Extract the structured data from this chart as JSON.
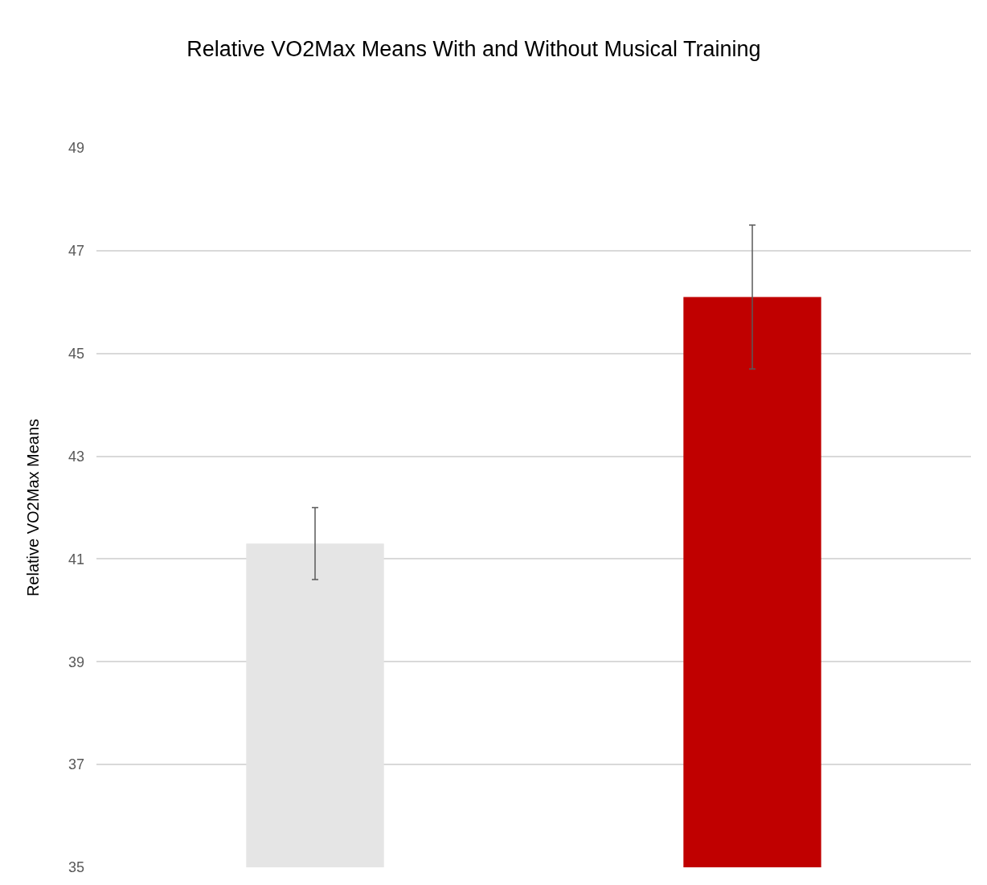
{
  "chart_data": {
    "type": "bar",
    "title": "Relative VO2Max Means With and Without Musical Training",
    "ylabel": "Relative VO2Max Means",
    "categories": [
      null,
      null
    ],
    "values": [
      41.3,
      46.1
    ],
    "colors": [
      "#e5e5e5",
      "#c00000"
    ],
    "errors": [
      0.7,
      1.4
    ],
    "ylim": [
      35,
      49
    ],
    "yticks": [
      35,
      37,
      39,
      41,
      43,
      45,
      47,
      49
    ],
    "grid": "y",
    "legend": false
  }
}
